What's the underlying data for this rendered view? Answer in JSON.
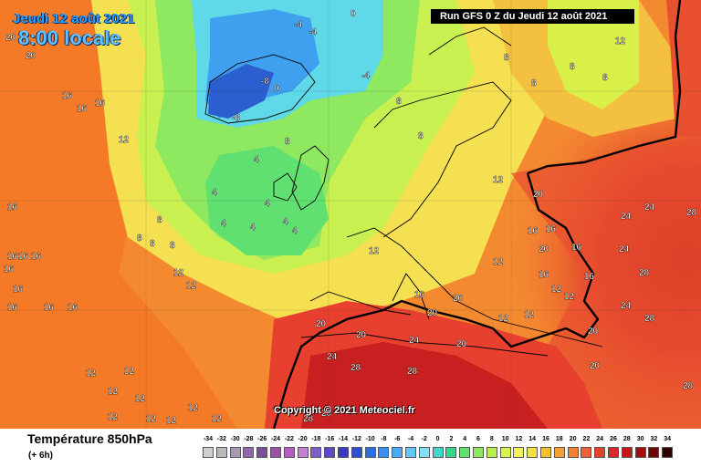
{
  "header": {
    "date_line": "Jeudi 12 août 2021",
    "time_line": "8:00 locale",
    "run_banner": "Run GFS 0 Z du Jeudi 12 août 2021"
  },
  "copyright": "Copyright © 2021 Meteociel.fr",
  "footer": {
    "title": "Température 850hPa",
    "subtitle": "(+ 6h)"
  },
  "scale": [
    {
      "label": "-34",
      "color": "#cfcfcf"
    },
    {
      "label": "-32",
      "color": "#b8b8b8"
    },
    {
      "label": "-30",
      "color": "#a898b8"
    },
    {
      "label": "-28",
      "color": "#9068a8"
    },
    {
      "label": "-26",
      "color": "#7a4f9a"
    },
    {
      "label": "-24",
      "color": "#9a4fa8"
    },
    {
      "label": "-22",
      "color": "#b35fc0"
    },
    {
      "label": "-20",
      "color": "#c77fd0"
    },
    {
      "label": "-18",
      "color": "#7b5fd0"
    },
    {
      "label": "-16",
      "color": "#5a4ac8"
    },
    {
      "label": "-14",
      "color": "#3a3abf"
    },
    {
      "label": "-12",
      "color": "#2b4fd0"
    },
    {
      "label": "-10",
      "color": "#2a6fe0"
    },
    {
      "label": "-8",
      "color": "#3b8ff0"
    },
    {
      "label": "-6",
      "color": "#4aa8f5"
    },
    {
      "label": "-4",
      "color": "#5fc8f8"
    },
    {
      "label": "-2",
      "color": "#7fe0f8"
    },
    {
      "label": "0",
      "color": "#3fd8c8"
    },
    {
      "label": "2",
      "color": "#3fd090"
    },
    {
      "label": "4",
      "color": "#5fe070"
    },
    {
      "label": "6",
      "color": "#8fe860"
    },
    {
      "label": "8",
      "color": "#b8f050"
    },
    {
      "label": "10",
      "color": "#d8f448"
    },
    {
      "label": "12",
      "color": "#f4f45a"
    },
    {
      "label": "14",
      "color": "#f4e048"
    },
    {
      "label": "16",
      "color": "#f4c030"
    },
    {
      "label": "18",
      "color": "#f4a030"
    },
    {
      "label": "20",
      "color": "#f48030"
    },
    {
      "label": "22",
      "color": "#f06030"
    },
    {
      "label": "24",
      "color": "#e84030"
    },
    {
      "label": "26",
      "color": "#d82828"
    },
    {
      "label": "28",
      "color": "#c01818"
    },
    {
      "label": "30",
      "color": "#a01010"
    },
    {
      "label": "32",
      "color": "#700808"
    },
    {
      "label": "34",
      "color": "#300000"
    }
  ],
  "isotherm_labels": [
    {
      "t": "20"
    },
    {
      "t": "20"
    },
    {
      "t": "16"
    },
    {
      "t": "16"
    },
    {
      "t": "16"
    },
    {
      "t": "12"
    },
    {
      "t": "16"
    },
    {
      "t": "16"
    },
    {
      "t": "16"
    },
    {
      "t": "16"
    },
    {
      "t": "16"
    },
    {
      "t": "16"
    },
    {
      "t": "16"
    },
    {
      "t": "12"
    },
    {
      "t": "12"
    },
    {
      "t": "12"
    },
    {
      "t": "12"
    },
    {
      "t": "12"
    },
    {
      "t": "12"
    },
    {
      "t": "12"
    },
    {
      "t": "12"
    },
    {
      "t": "12"
    },
    {
      "t": "12"
    },
    {
      "t": "12"
    },
    {
      "t": "16"
    },
    {
      "t": "16"
    },
    {
      "t": "12"
    },
    {
      "t": "12"
    },
    {
      "t": "8"
    },
    {
      "t": "8"
    },
    {
      "t": "8"
    },
    {
      "t": "8"
    },
    {
      "t": "4"
    },
    {
      "t": "4"
    },
    {
      "t": "4"
    },
    {
      "t": "4"
    },
    {
      "t": "4"
    },
    {
      "t": "4"
    },
    {
      "t": "4"
    },
    {
      "t": "0"
    },
    {
      "t": "-4"
    },
    {
      "t": "-4"
    },
    {
      "t": "-8"
    },
    {
      "t": "-8"
    },
    {
      "t": "0"
    },
    {
      "t": "-4"
    },
    {
      "t": "8"
    },
    {
      "t": "8"
    },
    {
      "t": "8"
    },
    {
      "t": "8"
    },
    {
      "t": "8"
    },
    {
      "t": "8"
    },
    {
      "t": "8"
    },
    {
      "t": "12"
    },
    {
      "t": "12"
    },
    {
      "t": "16"
    },
    {
      "t": "16"
    },
    {
      "t": "16"
    },
    {
      "t": "16"
    },
    {
      "t": "16"
    },
    {
      "t": "20"
    },
    {
      "t": "20"
    },
    {
      "t": "20"
    },
    {
      "t": "20"
    },
    {
      "t": "24"
    },
    {
      "t": "24"
    },
    {
      "t": "24"
    },
    {
      "t": "24"
    },
    {
      "t": "24"
    },
    {
      "t": "28"
    },
    {
      "t": "28"
    },
    {
      "t": "28"
    },
    {
      "t": "28"
    },
    {
      "t": "28"
    },
    {
      "t": "20"
    },
    {
      "t": "20"
    },
    {
      "t": "24"
    },
    {
      "t": "28"
    },
    {
      "t": "28"
    },
    {
      "t": "28"
    },
    {
      "t": "12"
    },
    {
      "t": "12"
    },
    {
      "t": "12"
    },
    {
      "t": "12"
    },
    {
      "t": "16"
    },
    {
      "t": "20"
    },
    {
      "t": "20"
    },
    {
      "t": "20"
    }
  ]
}
